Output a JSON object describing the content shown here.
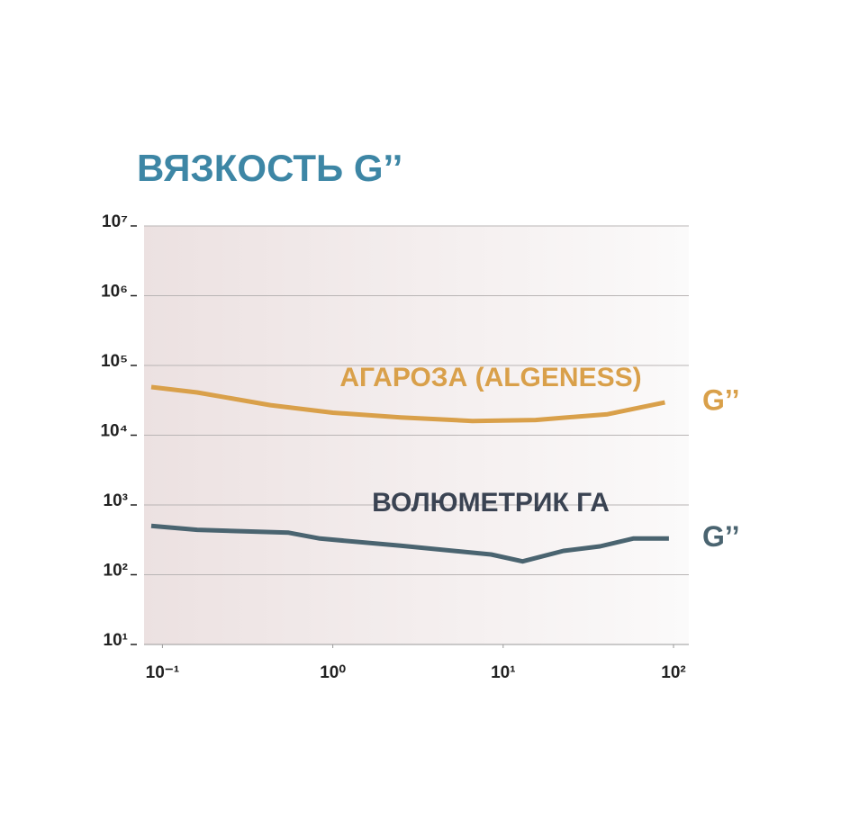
{
  "chart_data": {
    "type": "line",
    "title": "ВЯЗКОСТЬ G’’",
    "xlog": true,
    "ylog": true,
    "grid": true,
    "xlim": [
      0.078,
      123
    ],
    "ylim": [
      10,
      10000000
    ],
    "xticks": [
      {
        "value": 0.1,
        "label": "10⁻¹"
      },
      {
        "value": 1,
        "label": "10⁰"
      },
      {
        "value": 10,
        "label": "10¹"
      },
      {
        "value": 100,
        "label": "10²"
      }
    ],
    "yticks": [
      {
        "value": 10,
        "label": "10¹"
      },
      {
        "value": 100,
        "label": "10²"
      },
      {
        "value": 1000,
        "label": "10³"
      },
      {
        "value": 10000,
        "label": "10⁴"
      },
      {
        "value": 100000,
        "label": "10⁵"
      },
      {
        "value": 1000000,
        "label": "10⁶"
      },
      {
        "value": 10000000,
        "label": "10⁷"
      }
    ],
    "series": [
      {
        "name": "G’’",
        "label": "АГАРОЗА (ALGENESS)",
        "color": "#d9a04a",
        "label_color": "#d9a04a",
        "x": [
          0.086,
          0.16,
          0.43,
          1,
          2.5,
          6.6,
          15.5,
          41,
          89
        ],
        "values": [
          49000,
          41000,
          27000,
          21000,
          18000,
          16000,
          16500,
          20000,
          29500
        ]
      },
      {
        "name": "G’’",
        "label": "ВОЛЮМЕТРИК ГА",
        "color": "#4a6470",
        "label_color": "#3a4352",
        "x": [
          0.086,
          0.16,
          0.55,
          0.84,
          2.5,
          8.5,
          13,
          22.6,
          37,
          58,
          94
        ],
        "values": [
          500,
          440,
          400,
          330,
          260,
          195,
          155,
          220,
          255,
          330,
          330
        ]
      }
    ]
  }
}
